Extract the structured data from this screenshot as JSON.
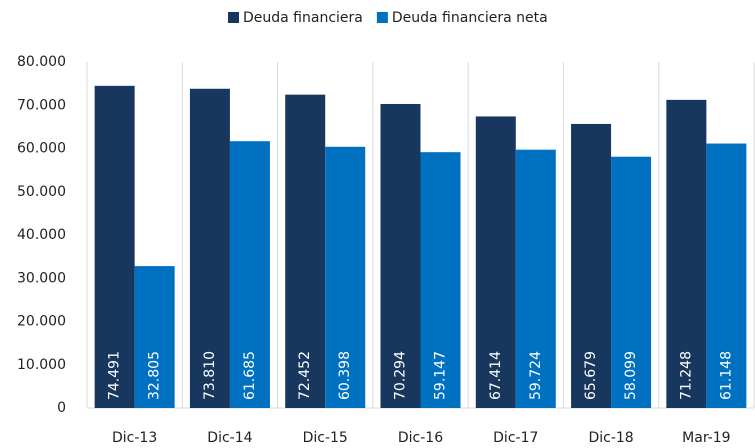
{
  "chart_data": {
    "type": "bar",
    "categories": [
      "Dic-13",
      "Dic-14",
      "Dic-15",
      "Dic-16",
      "Dic-17",
      "Dic-18",
      "Mar-19"
    ],
    "series": [
      {
        "name": "Deuda financiera",
        "color": "#17375e",
        "values": [
          74491,
          73810,
          72452,
          70294,
          67414,
          65679,
          71248
        ],
        "value_labels": [
          "74.491",
          "73.810",
          "72.452",
          "70.294",
          "67.414",
          "65.679",
          "71.248"
        ]
      },
      {
        "name": "Deuda financiera neta",
        "color": "#0070c0",
        "values": [
          32805,
          61685,
          60398,
          59147,
          59724,
          58099,
          61148
        ],
        "value_labels": [
          "32.805",
          "61.685",
          "60.398",
          "59.147",
          "59.724",
          "58.099",
          "61.148"
        ]
      }
    ],
    "ylim": [
      0,
      80000
    ],
    "yticks": [
      0,
      {
        "value": 10000,
        "label": "10.000"
      },
      {
        "value": 20000,
        "label": "20.000"
      },
      {
        "value": 30000,
        "label": "30.000"
      },
      {
        "value": 40000,
        "label": "40.000"
      },
      {
        "value": 50000,
        "label": "50.000"
      },
      {
        "value": 60000,
        "label": "60.000"
      },
      {
        "value": 70000,
        "label": "70.000"
      },
      {
        "value": 80000,
        "label": "80.000"
      }
    ],
    "legend": "top"
  }
}
